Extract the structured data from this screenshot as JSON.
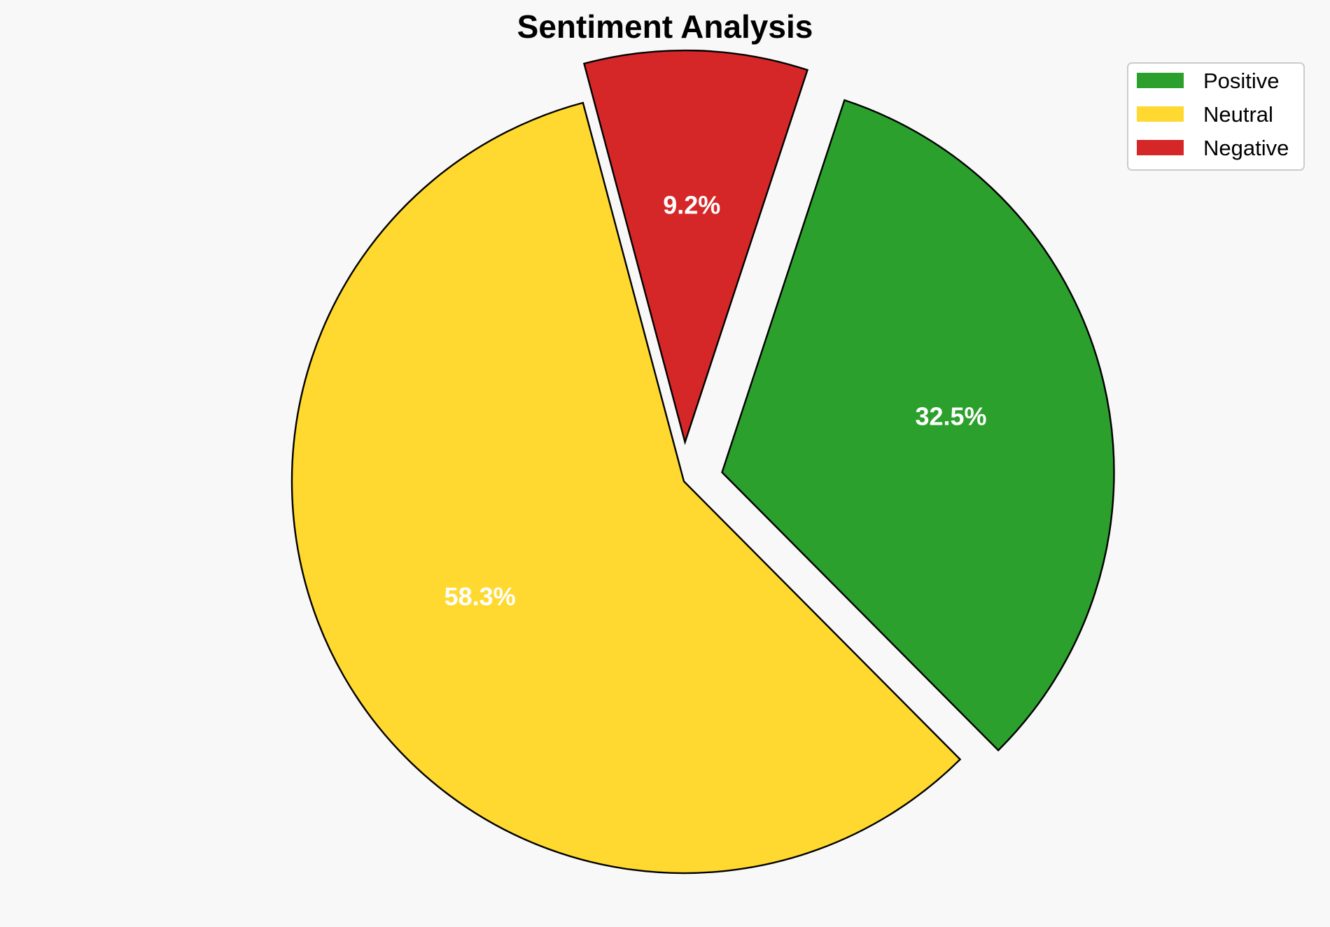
{
  "chart_data": {
    "type": "pie",
    "title": "Sentiment Analysis",
    "categories": [
      "Positive",
      "Neutral",
      "Negative"
    ],
    "values": [
      32.5,
      58.3,
      9.2
    ],
    "labels": [
      "32.5%",
      "58.3%",
      "9.2%"
    ],
    "colors": [
      "#2ca02c",
      "#ffd92f",
      "#d62728"
    ],
    "exploded": [
      true,
      false,
      true
    ],
    "legend_placement": "top-right",
    "legend": {
      "entries": [
        "Positive",
        "Neutral",
        "Negative"
      ]
    }
  }
}
